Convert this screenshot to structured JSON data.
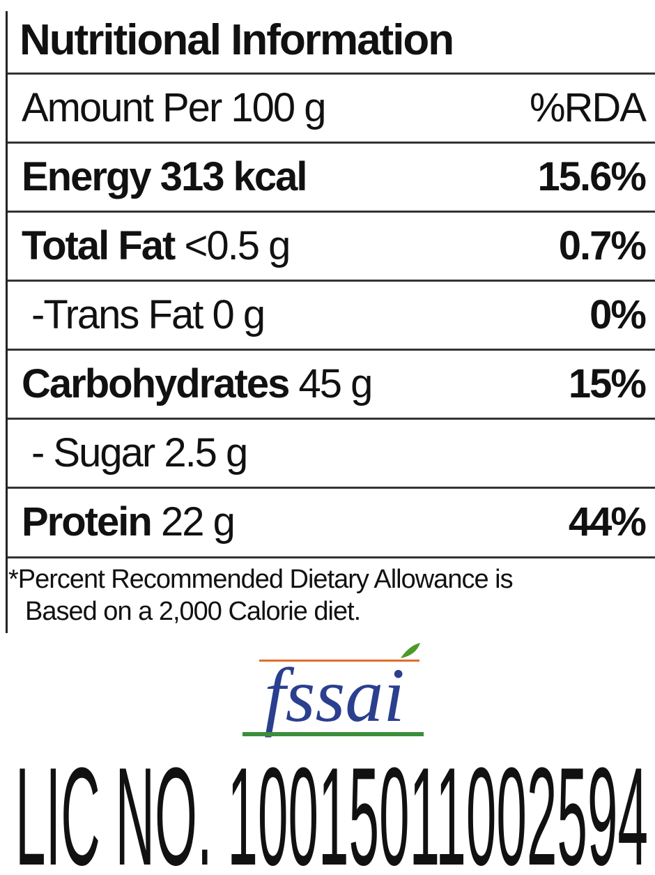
{
  "label": {
    "title": "Nutritional Information",
    "header": {
      "amount": "Amount Per 100 g",
      "rda": "%RDA"
    },
    "rows": [
      {
        "nutrient": "Energy 313 kcal",
        "rda": "15.6%"
      },
      {
        "nutrient": "Total Fat",
        "amount": "<0.5 g",
        "rda": "0.7%"
      },
      {
        "amount": "-Trans Fat 0 g",
        "rda": "0%"
      },
      {
        "nutrient": "Carbohydrates",
        "amount": "45 g",
        "rda": "15%"
      },
      {
        "amount": "- Sugar 2.5 g"
      },
      {
        "nutrient": "Protein",
        "amount": "22 g",
        "rda": "44%"
      }
    ],
    "footnote": [
      "*Percent Recommended Dietary Allowance is",
      "Based on a 2,000 Calorie diet."
    ]
  },
  "logo": {
    "text": "fssai"
  },
  "license": "LIC NO. 10015011002594"
}
